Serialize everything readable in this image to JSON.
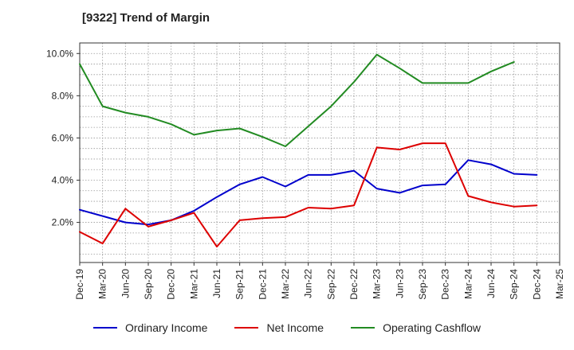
{
  "chart_data": {
    "type": "line",
    "title": "[9322]  Trend of Margin",
    "xlabel": "",
    "ylabel": "",
    "categories": [
      "Dec-19",
      "Mar-20",
      "Jun-20",
      "Sep-20",
      "Dec-20",
      "Mar-21",
      "Jun-21",
      "Sep-21",
      "Dec-21",
      "Mar-22",
      "Jun-22",
      "Sep-22",
      "Dec-22",
      "Mar-23",
      "Jun-23",
      "Sep-23",
      "Dec-23",
      "Mar-24",
      "Jun-24",
      "Sep-24",
      "Dec-24",
      "Mar-25"
    ],
    "yticks": [
      2.0,
      4.0,
      6.0,
      8.0,
      10.0
    ],
    "ytick_labels": [
      "2.0%",
      "4.0%",
      "6.0%",
      "8.0%",
      "10.0%"
    ],
    "ylim": [
      0.1,
      10.5
    ],
    "grid": true,
    "legend_position": "bottom",
    "series": [
      {
        "name": "Ordinary Income",
        "color": "#0000cc",
        "values": [
          2.6,
          2.3,
          2.0,
          1.9,
          2.1,
          2.55,
          3.2,
          3.8,
          4.15,
          3.7,
          4.25,
          4.25,
          4.45,
          3.6,
          3.4,
          3.75,
          3.8,
          4.95,
          4.75,
          4.3,
          4.25,
          null
        ]
      },
      {
        "name": "Net Income",
        "color": "#dd0000",
        "values": [
          1.55,
          1.0,
          2.65,
          1.8,
          2.1,
          2.45,
          0.85,
          2.1,
          2.2,
          2.25,
          2.7,
          2.65,
          2.8,
          5.55,
          5.45,
          5.75,
          5.75,
          3.25,
          2.95,
          2.75,
          2.8,
          null
        ]
      },
      {
        "name": "Operating Cashflow",
        "color": "#228b22",
        "values": [
          9.5,
          7.5,
          7.2,
          7.0,
          6.65,
          6.15,
          6.35,
          6.45,
          6.05,
          5.6,
          6.55,
          7.5,
          8.65,
          9.95,
          9.3,
          8.6,
          8.6,
          8.6,
          9.15,
          9.6,
          null,
          null
        ]
      }
    ]
  }
}
